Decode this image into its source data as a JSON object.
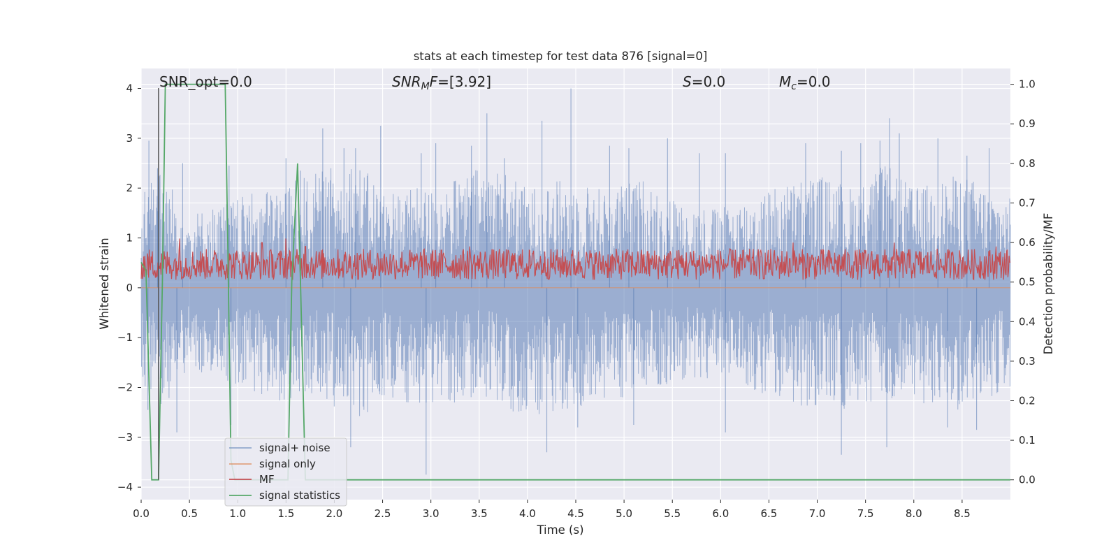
{
  "chart_data": {
    "type": "line",
    "title": "stats at each timestep for test data 876 [signal=0]",
    "xlabel": "Time (s)",
    "ylabel": "Whitened strain",
    "y2label": "Detection probability/MF",
    "xlim": [
      0.0,
      9.0
    ],
    "ylim": [
      -4.25,
      4.4
    ],
    "y2lim": [
      -0.05,
      1.04
    ],
    "xticks": [
      "0.0",
      "0.5",
      "1.0",
      "1.5",
      "2.0",
      "2.5",
      "3.0",
      "3.5",
      "4.0",
      "4.5",
      "5.0",
      "5.5",
      "6.0",
      "6.5",
      "7.0",
      "7.5",
      "8.0",
      "8.5"
    ],
    "yticks": [
      "4",
      "3",
      "2",
      "1",
      "0",
      "−1",
      "−2",
      "−3",
      "−4"
    ],
    "y2ticks": [
      "1.0",
      "0.9",
      "0.8",
      "0.7",
      "0.6",
      "0.5",
      "0.4",
      "0.3",
      "0.2",
      "0.1",
      "0.0"
    ],
    "grid": true,
    "legend_position": "lower-left",
    "annotations": {
      "snr_opt": "SNR_opt=0.0",
      "snr_mf_sym": "SNR",
      "snr_mf_sub": "M",
      "snr_mf_rest": "F=[3.92]",
      "s_sym": "S",
      "s_rest": "=0.0",
      "mc_sym": "M",
      "mc_sub": "c",
      "mc_rest": "=0.0"
    },
    "series": [
      {
        "name": "signal+ noise",
        "color": "#4c72b0",
        "axis": "left",
        "envelope_upper": [
          [
            0.0,
            1.9
          ],
          [
            0.2,
            2.4
          ],
          [
            0.5,
            1.5
          ],
          [
            1.0,
            1.8
          ],
          [
            1.5,
            2.1
          ],
          [
            1.8,
            2.3
          ],
          [
            2.2,
            2.6
          ],
          [
            2.5,
            2.0
          ],
          [
            3.0,
            2.0
          ],
          [
            3.4,
            2.3
          ],
          [
            3.6,
            2.6
          ],
          [
            4.0,
            2.0
          ],
          [
            4.4,
            2.2
          ],
          [
            4.8,
            2.0
          ],
          [
            5.2,
            2.2
          ],
          [
            5.6,
            1.7
          ],
          [
            6.0,
            1.6
          ],
          [
            6.5,
            2.0
          ],
          [
            7.0,
            2.3
          ],
          [
            7.4,
            2.0
          ],
          [
            7.7,
            2.5
          ],
          [
            8.0,
            2.0
          ],
          [
            8.5,
            2.3
          ],
          [
            9.0,
            1.8
          ]
        ],
        "envelope_lower": [
          [
            0.0,
            -2.1
          ],
          [
            0.2,
            -2.5
          ],
          [
            0.5,
            -1.6
          ],
          [
            1.0,
            -2.0
          ],
          [
            1.5,
            -2.3
          ],
          [
            1.8,
            -2.2
          ],
          [
            2.2,
            -2.7
          ],
          [
            2.5,
            -2.3
          ],
          [
            3.0,
            -2.4
          ],
          [
            3.5,
            -2.2
          ],
          [
            4.0,
            -2.6
          ],
          [
            4.5,
            -2.4
          ],
          [
            5.0,
            -2.2
          ],
          [
            5.5,
            -1.9
          ],
          [
            6.0,
            -1.8
          ],
          [
            6.5,
            -2.2
          ],
          [
            7.0,
            -2.5
          ],
          [
            7.5,
            -2.4
          ],
          [
            8.0,
            -2.3
          ],
          [
            8.5,
            -2.5
          ],
          [
            9.0,
            -2.0
          ]
        ],
        "peaks": [
          [
            0.08,
            2.95
          ],
          [
            0.17,
            2.4
          ],
          [
            0.43,
            2.5
          ],
          [
            0.91,
            2.45
          ],
          [
            1.5,
            2.6
          ],
          [
            1.65,
            2.35
          ],
          [
            1.88,
            3.2
          ],
          [
            2.1,
            2.8
          ],
          [
            2.22,
            2.8
          ],
          [
            2.48,
            3.25
          ],
          [
            2.9,
            2.7
          ],
          [
            3.05,
            2.9
          ],
          [
            3.42,
            2.85
          ],
          [
            3.58,
            3.5
          ],
          [
            3.76,
            2.6
          ],
          [
            4.15,
            3.35
          ],
          [
            4.45,
            4.0
          ],
          [
            4.85,
            2.85
          ],
          [
            5.05,
            2.8
          ],
          [
            5.45,
            3.0
          ],
          [
            5.78,
            2.7
          ],
          [
            6.05,
            2.7
          ],
          [
            6.88,
            2.9
          ],
          [
            7.25,
            2.75
          ],
          [
            7.45,
            2.9
          ],
          [
            7.65,
            2.95
          ],
          [
            7.75,
            3.4
          ],
          [
            7.85,
            3.1
          ],
          [
            8.25,
            3.0
          ],
          [
            8.55,
            2.65
          ],
          [
            8.78,
            2.8
          ]
        ],
        "troughs": [
          [
            0.07,
            -2.45
          ],
          [
            0.37,
            -2.9
          ],
          [
            0.93,
            -2.75
          ],
          [
            2.17,
            -3.2
          ],
          [
            2.95,
            -3.75
          ],
          [
            4.2,
            -3.3
          ],
          [
            4.52,
            -2.8
          ],
          [
            5.1,
            -2.75
          ],
          [
            6.05,
            -2.9
          ],
          [
            7.25,
            -3.35
          ],
          [
            7.72,
            -3.2
          ],
          [
            8.35,
            -2.8
          ],
          [
            8.65,
            -2.85
          ]
        ]
      },
      {
        "name": "signal only",
        "color": "#dd8452",
        "axis": "left",
        "values": [
          [
            0.0,
            0.0
          ],
          [
            9.0,
            0.0
          ]
        ]
      },
      {
        "name": "MF",
        "color": "#c44e52",
        "axis": "right",
        "base": 0.53,
        "band_low": 0.495,
        "band_high": 0.6,
        "peaks": [
          [
            0.4,
            0.61
          ],
          [
            1.25,
            0.6
          ],
          [
            1.5,
            0.61
          ],
          [
            1.7,
            0.59
          ],
          [
            3.4,
            0.59
          ],
          [
            6.75,
            0.6
          ],
          [
            7.8,
            0.6
          ],
          [
            8.85,
            0.59
          ]
        ]
      },
      {
        "name": "signal statistics",
        "color": "#55a868",
        "axis": "right",
        "values": [
          [
            0.0,
            0.55
          ],
          [
            0.05,
            0.53
          ],
          [
            0.11,
            0.0
          ],
          [
            0.18,
            0.0
          ],
          [
            0.22,
            0.5
          ],
          [
            0.25,
            1.0
          ],
          [
            0.87,
            1.0
          ],
          [
            0.9,
            0.55
          ],
          [
            0.93,
            0.05
          ],
          [
            0.97,
            0.0
          ],
          [
            1.52,
            0.0
          ],
          [
            1.56,
            0.5
          ],
          [
            1.62,
            0.8
          ],
          [
            1.67,
            0.3
          ],
          [
            1.7,
            0.0
          ],
          [
            9.0,
            0.0
          ]
        ]
      }
    ]
  },
  "marker_line": {
    "x": 0.18,
    "color": "#555555"
  }
}
